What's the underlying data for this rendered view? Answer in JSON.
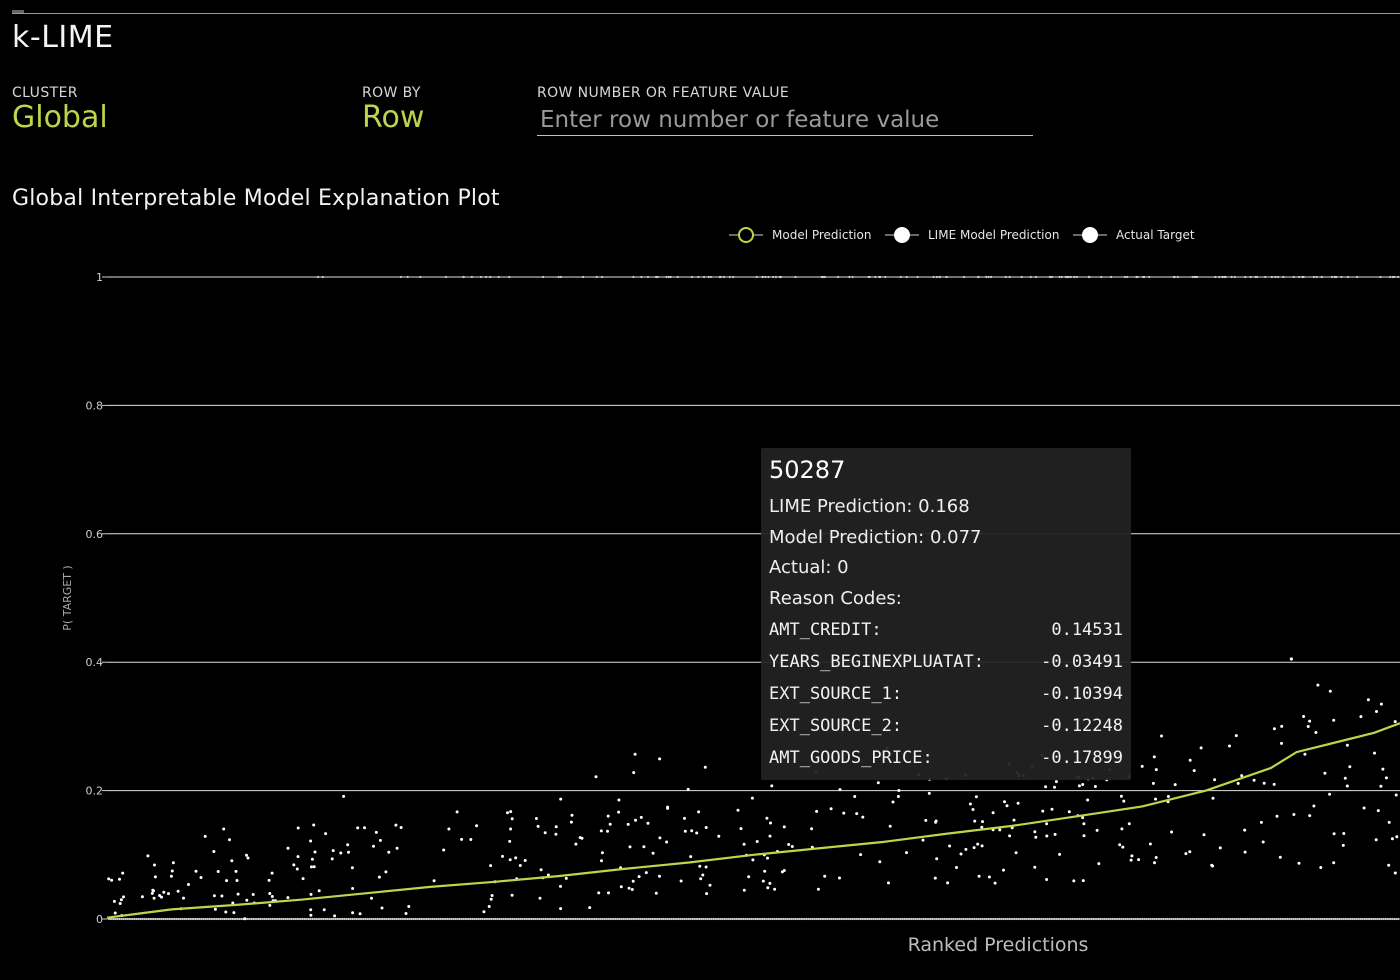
{
  "app": {
    "title": "k-LIME"
  },
  "controls": {
    "cluster": {
      "label": "CLUSTER",
      "value": "Global"
    },
    "row_by": {
      "label": "ROW BY",
      "value": "Row"
    },
    "search": {
      "label": "ROW NUMBER OR FEATURE VALUE",
      "placeholder": "Enter row number or feature value",
      "value": ""
    }
  },
  "plot": {
    "title": "Global Interpretable Model Explanation Plot"
  },
  "colors": {
    "accent": "#bfd44a",
    "model_line": "#bfd44a",
    "lime_points": "#ffffff",
    "actual_points": "#cfcfcf",
    "grid": "#e0e0e0",
    "tooltip_bg": "#222222"
  },
  "tooltip": {
    "id": "50287",
    "lines": [
      "LIME Prediction: 0.168",
      "Model Prediction: 0.077",
      "Actual: 0",
      "Reason Codes:"
    ],
    "reason_codes": [
      {
        "name": "AMT_CREDIT:",
        "value": "0.14531"
      },
      {
        "name": "YEARS_BEGINEXPLUATAT:",
        "value": "-0.03491"
      },
      {
        "name": "EXT_SOURCE_1:",
        "value": "-0.10394"
      },
      {
        "name": "EXT_SOURCE_2:",
        "value": "-0.12248"
      },
      {
        "name": "AMT_GOODS_PRICE:",
        "value": "-0.17899"
      }
    ]
  },
  "chart_data": {
    "type": "scatter",
    "title": "Global Interpretable Model Explanation Plot",
    "xlabel": "Ranked Predictions",
    "ylabel": "P( TARGET )",
    "ylim": [
      0,
      1
    ],
    "yticks": [
      0,
      0.2,
      0.4,
      0.6,
      0.8,
      1
    ],
    "ytick_labels": [
      "0",
      "0.2",
      "0.4",
      "0.6",
      "0.8",
      "1"
    ],
    "grid": true,
    "legend": {
      "placement": "top-center",
      "entries": [
        "Model Prediction",
        "LIME Model Prediction",
        "Actual Target"
      ]
    },
    "series": [
      {
        "name": "Model Prediction",
        "kind": "line",
        "rank_pct": [
          0,
          5,
          10,
          15,
          20,
          25,
          30,
          35,
          40,
          45,
          50,
          55,
          60,
          65,
          70,
          75,
          80,
          85,
          90,
          92,
          95,
          98,
          100
        ],
        "values": [
          0.002,
          0.015,
          0.022,
          0.03,
          0.04,
          0.05,
          0.058,
          0.067,
          0.078,
          0.088,
          0.1,
          0.11,
          0.12,
          0.133,
          0.145,
          0.16,
          0.175,
          0.2,
          0.235,
          0.26,
          0.275,
          0.29,
          0.305
        ]
      },
      {
        "name": "LIME Model Prediction",
        "kind": "scatter",
        "count": 420,
        "range_note_by_rank": [
          [
            0,
            0.0,
            0.08
          ],
          [
            20,
            0.0,
            0.15
          ],
          [
            40,
            0.02,
            0.2
          ],
          [
            60,
            0.05,
            0.22
          ],
          [
            80,
            0.06,
            0.28
          ],
          [
            100,
            0.05,
            0.35
          ]
        ]
      },
      {
        "name": "Actual Target",
        "kind": "scatter",
        "values_allowed": [
          0,
          1
        ]
      }
    ]
  }
}
